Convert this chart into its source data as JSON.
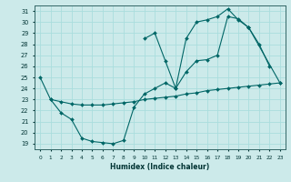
{
  "xlabel": "Humidex (Indice chaleur)",
  "bg_color": "#cceaea",
  "grid_color": "#aadddd",
  "line_color": "#006666",
  "xlim": [
    -0.5,
    23.5
  ],
  "ylim": [
    18.5,
    31.5
  ],
  "yticks": [
    19,
    20,
    21,
    22,
    23,
    24,
    25,
    26,
    27,
    28,
    29,
    30,
    31
  ],
  "xticks": [
    0,
    1,
    2,
    3,
    4,
    5,
    6,
    7,
    8,
    9,
    10,
    11,
    12,
    13,
    14,
    15,
    16,
    17,
    18,
    19,
    20,
    21,
    22,
    23
  ],
  "line1_x": [
    0,
    1,
    2,
    3,
    4,
    5,
    6,
    7,
    8,
    9,
    10,
    11,
    12,
    13,
    14,
    15,
    16,
    17,
    18,
    19,
    20,
    21,
    22
  ],
  "line1_y": [
    25,
    23,
    21.8,
    21.2,
    19.5,
    19.2,
    19.1,
    19.0,
    19.3,
    22.3,
    23.5,
    24.0,
    24.5,
    24.0,
    25.5,
    26.5,
    26.6,
    27.0,
    30.5,
    30.3,
    29.5,
    28.0,
    26.0
  ],
  "line2_x": [
    10,
    11,
    12,
    13,
    14,
    15,
    16,
    17,
    18,
    19,
    20,
    23
  ],
  "line2_y": [
    28.5,
    29.0,
    26.5,
    24.0,
    28.5,
    30.0,
    30.2,
    30.5,
    31.2,
    30.2,
    29.5,
    24.5
  ],
  "line3_x": [
    1,
    2,
    3,
    4,
    5,
    6,
    7,
    8,
    9,
    10,
    11,
    12,
    13,
    14,
    15,
    16,
    17,
    18,
    19,
    20,
    21,
    22,
    23
  ],
  "line3_y": [
    23.0,
    22.8,
    22.6,
    22.5,
    22.5,
    22.5,
    22.6,
    22.7,
    22.8,
    23.0,
    23.1,
    23.2,
    23.3,
    23.5,
    23.6,
    23.8,
    23.9,
    24.0,
    24.1,
    24.2,
    24.3,
    24.4,
    24.5
  ]
}
